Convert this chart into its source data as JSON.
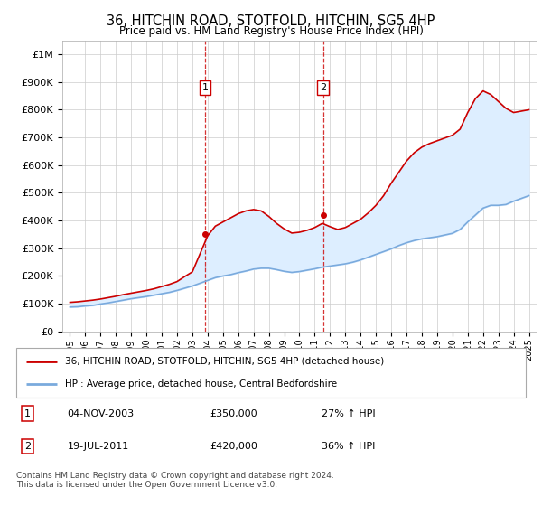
{
  "title": "36, HITCHIN ROAD, STOTFOLD, HITCHIN, SG5 4HP",
  "subtitle": "Price paid vs. HM Land Registry's House Price Index (HPI)",
  "legend_line1": "36, HITCHIN ROAD, STOTFOLD, HITCHIN, SG5 4HP (detached house)",
  "legend_line2": "HPI: Average price, detached house, Central Bedfordshire",
  "footnote": "Contains HM Land Registry data © Crown copyright and database right 2024.\nThis data is licensed under the Open Government Licence v3.0.",
  "sale1_label": "1",
  "sale1_date": "04-NOV-2003",
  "sale1_price": "£350,000",
  "sale1_hpi": "27% ↑ HPI",
  "sale2_label": "2",
  "sale2_date": "19-JUL-2011",
  "sale2_price": "£420,000",
  "sale2_hpi": "36% ↑ HPI",
  "sale1_year": 2003.84,
  "sale1_value": 350000,
  "sale2_year": 2011.54,
  "sale2_value": 420000,
  "red_color": "#cc0000",
  "blue_color": "#7aaadd",
  "fill_color": "#ddeeff",
  "ylim_max": 1050000,
  "xlim_min": 1994.5,
  "xlim_max": 2025.5,
  "hpi_years": [
    1995,
    1995.5,
    1996,
    1996.5,
    1997,
    1997.5,
    1998,
    1998.5,
    1999,
    1999.5,
    2000,
    2000.5,
    2001,
    2001.5,
    2002,
    2002.5,
    2003,
    2003.5,
    2004,
    2004.5,
    2005,
    2005.5,
    2006,
    2006.5,
    2007,
    2007.5,
    2008,
    2008.5,
    2009,
    2009.5,
    2010,
    2010.5,
    2011,
    2011.5,
    2012,
    2012.5,
    2013,
    2013.5,
    2014,
    2014.5,
    2015,
    2015.5,
    2016,
    2016.5,
    2017,
    2017.5,
    2018,
    2018.5,
    2019,
    2019.5,
    2020,
    2020.5,
    2021,
    2021.5,
    2022,
    2022.5,
    2023,
    2023.5,
    2024,
    2024.5,
    2025
  ],
  "hpi_values": [
    88000,
    89000,
    92000,
    94000,
    99000,
    103000,
    108000,
    113000,
    118000,
    122000,
    126000,
    131000,
    136000,
    141000,
    148000,
    156000,
    164000,
    174000,
    184000,
    194000,
    200000,
    205000,
    212000,
    218000,
    225000,
    228000,
    228000,
    223000,
    217000,
    213000,
    216000,
    221000,
    226000,
    232000,
    236000,
    240000,
    244000,
    250000,
    258000,
    268000,
    278000,
    288000,
    298000,
    310000,
    320000,
    328000,
    334000,
    338000,
    342000,
    348000,
    354000,
    368000,
    395000,
    420000,
    445000,
    455000,
    455000,
    458000,
    470000,
    480000,
    490000
  ],
  "red_years": [
    1995,
    1995.5,
    1996,
    1996.5,
    1997,
    1997.5,
    1998,
    1998.5,
    1999,
    1999.5,
    2000,
    2000.5,
    2001,
    2001.5,
    2002,
    2002.5,
    2003,
    2003.5,
    2004,
    2004.5,
    2005,
    2005.5,
    2006,
    2006.5,
    2007,
    2007.5,
    2008,
    2008.5,
    2009,
    2009.5,
    2010,
    2010.5,
    2011,
    2011.5,
    2012,
    2012.5,
    2013,
    2013.5,
    2014,
    2014.5,
    2015,
    2015.5,
    2016,
    2016.5,
    2017,
    2017.5,
    2018,
    2018.5,
    2019,
    2019.5,
    2020,
    2020.5,
    2021,
    2021.5,
    2022,
    2022.5,
    2023,
    2023.5,
    2024,
    2024.5,
    2025
  ],
  "red_values": [
    105000,
    107000,
    110000,
    113000,
    117000,
    122000,
    127000,
    133000,
    138000,
    143000,
    148000,
    154000,
    162000,
    170000,
    180000,
    198000,
    215000,
    280000,
    345000,
    380000,
    395000,
    410000,
    425000,
    435000,
    440000,
    435000,
    415000,
    390000,
    370000,
    355000,
    358000,
    365000,
    375000,
    390000,
    378000,
    368000,
    375000,
    390000,
    405000,
    428000,
    455000,
    490000,
    535000,
    575000,
    615000,
    645000,
    665000,
    678000,
    688000,
    698000,
    708000,
    730000,
    790000,
    840000,
    868000,
    855000,
    830000,
    805000,
    790000,
    795000,
    800000
  ]
}
